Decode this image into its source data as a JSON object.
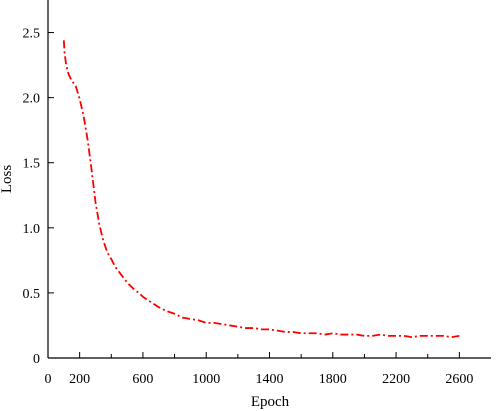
{
  "chart_data": {
    "type": "line",
    "title": "",
    "xlabel": "Epoch",
    "ylabel": "Loss",
    "xlim": [
      0,
      2800
    ],
    "ylim": [
      0,
      2.75
    ],
    "x_ticks": [
      0,
      200,
      600,
      1000,
      1400,
      1800,
      2200,
      2600
    ],
    "x_minor_ticks": [
      400,
      800,
      1200,
      1600,
      2000,
      2400
    ],
    "y_ticks": [
      0,
      0.5,
      1.0,
      1.5,
      2.0,
      2.5
    ],
    "x_tick_labels": [
      "0",
      "200",
      "600",
      "1000",
      "1400",
      "1800",
      "2200",
      "2600"
    ],
    "y_tick_labels": [
      "0",
      "0.5",
      "1.0",
      "1.5",
      "2.0",
      "2.5"
    ],
    "grid": false,
    "legend": "none",
    "series": [
      {
        "color": "#ff0000",
        "style": "dash-dot",
        "x": [
          100,
          105,
          115,
          130,
          150,
          175,
          200,
          225,
          250,
          275,
          300,
          325,
          350,
          375,
          400,
          425,
          450,
          475,
          500,
          525,
          550,
          575,
          600,
          650,
          700,
          750,
          800,
          850,
          900,
          950,
          1000,
          1050,
          1100,
          1150,
          1200,
          1250,
          1300,
          1350,
          1400,
          1450,
          1500,
          1550,
          1600,
          1650,
          1700,
          1750,
          1800,
          1850,
          1900,
          1950,
          2000,
          2050,
          2100,
          2150,
          2200,
          2250,
          2300,
          2350,
          2400,
          2450,
          2500,
          2550,
          2600
        ],
        "y": [
          2.44,
          2.34,
          2.25,
          2.18,
          2.13,
          2.09,
          1.99,
          1.86,
          1.68,
          1.45,
          1.2,
          1.02,
          0.9,
          0.81,
          0.76,
          0.7,
          0.66,
          0.62,
          0.58,
          0.55,
          0.52,
          0.5,
          0.47,
          0.43,
          0.39,
          0.36,
          0.34,
          0.31,
          0.3,
          0.29,
          0.27,
          0.27,
          0.26,
          0.25,
          0.24,
          0.23,
          0.23,
          0.22,
          0.22,
          0.21,
          0.2,
          0.2,
          0.19,
          0.19,
          0.19,
          0.18,
          0.19,
          0.18,
          0.18,
          0.18,
          0.17,
          0.17,
          0.18,
          0.17,
          0.17,
          0.17,
          0.16,
          0.17,
          0.17,
          0.17,
          0.17,
          0.16,
          0.17
        ]
      }
    ]
  }
}
